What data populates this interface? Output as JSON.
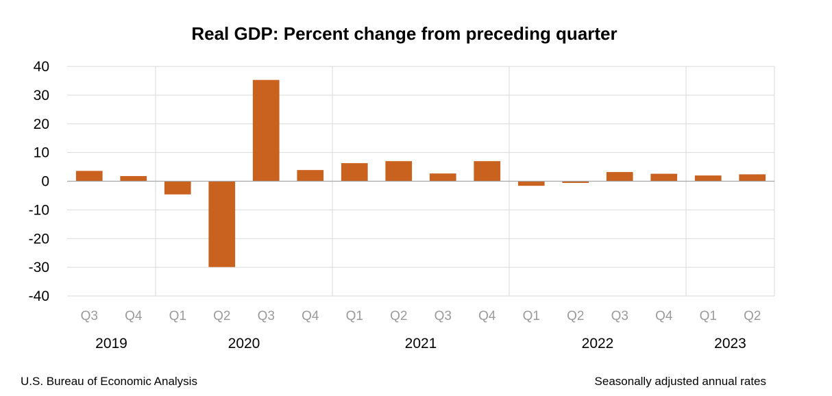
{
  "chart_data": {
    "type": "bar",
    "title": "Real GDP: Percent change from preceding quarter",
    "categories": [
      "Q3",
      "Q4",
      "Q1",
      "Q2",
      "Q3",
      "Q4",
      "Q1",
      "Q2",
      "Q3",
      "Q4",
      "Q1",
      "Q2",
      "Q3",
      "Q4",
      "Q1",
      "Q2"
    ],
    "values": [
      3.6,
      1.8,
      -4.6,
      -29.9,
      35.3,
      3.9,
      6.3,
      7.0,
      2.7,
      7.0,
      -1.6,
      -0.6,
      3.2,
      2.6,
      2.0,
      2.4
    ],
    "year_groups": [
      {
        "label": "2019",
        "count": 2
      },
      {
        "label": "2020",
        "count": 4
      },
      {
        "label": "2021",
        "count": 4
      },
      {
        "label": "2022",
        "count": 4
      },
      {
        "label": "2023",
        "count": 2
      }
    ],
    "ylim": [
      -40,
      40
    ],
    "yticks": [
      40,
      30,
      20,
      10,
      0,
      -10,
      -20,
      -30,
      -40
    ],
    "grid": true,
    "bar_color": "#c8621e"
  },
  "footer": {
    "source": "U.S. Bureau of Economic Analysis",
    "note": "Seasonally adjusted annual rates"
  }
}
